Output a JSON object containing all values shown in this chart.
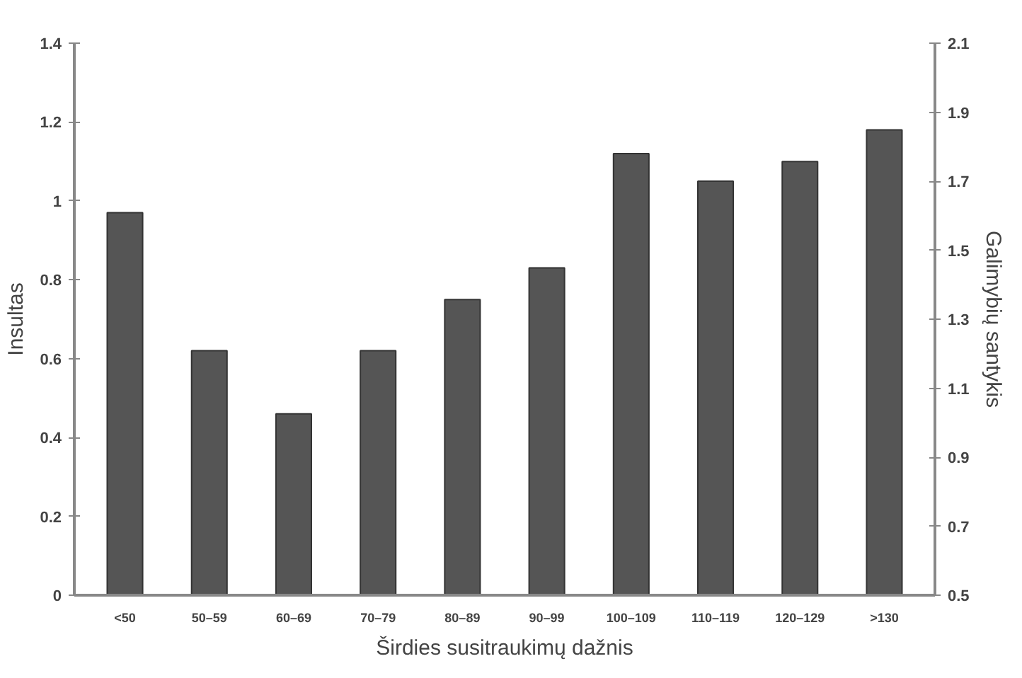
{
  "chart_data": {
    "type": "bar",
    "xlabel": "Širdies susitraukimų dažnis",
    "ylabel": "Insultas",
    "y2label": "Galimybių santykis",
    "categories": [
      "<50",
      "50–59",
      "60–69",
      "70–79",
      "80–89",
      "90–99",
      "100–109",
      "110–119",
      "120–129",
      ">130"
    ],
    "values": [
      0.97,
      0.62,
      0.46,
      0.62,
      0.75,
      0.83,
      1.12,
      1.05,
      1.1,
      1.18
    ],
    "color": "#555555",
    "ylim": [
      0,
      1.4
    ],
    "yticks": [
      0,
      0.2,
      0.4,
      0.6,
      0.8,
      1,
      1.2,
      1.4
    ],
    "y2lim": [
      0.5,
      2.1
    ],
    "y2ticks": [
      0.5,
      0.7,
      0.9,
      1.1,
      1.3,
      1.5,
      1.7,
      1.9,
      2.1
    ],
    "grid": false
  }
}
